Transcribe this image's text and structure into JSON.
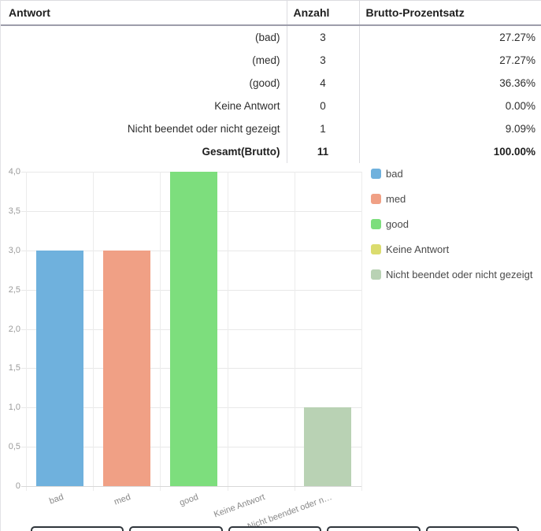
{
  "table": {
    "headers": [
      "Antwort",
      "Anzahl",
      "Brutto-Prozentsatz"
    ],
    "rows": [
      {
        "answer": "(bad)",
        "count": "3",
        "percent": "27.27%"
      },
      {
        "answer": "(med)",
        "count": "3",
        "percent": "27.27%"
      },
      {
        "answer": "(good)",
        "count": "4",
        "percent": "36.36%"
      },
      {
        "answer": "Keine Antwort",
        "count": "0",
        "percent": "0.00%"
      },
      {
        "answer": "Nicht beendet oder nicht gezeigt",
        "count": "1",
        "percent": "9.09%"
      },
      {
        "answer": "Gesamt(Brutto)",
        "count": "11",
        "percent": "100.00%"
      }
    ]
  },
  "chart_data": {
    "type": "bar",
    "categories": [
      "bad",
      "med",
      "good",
      "Keine Antwort",
      "Nicht beendet oder n…"
    ],
    "values": [
      3,
      3,
      4,
      0,
      1
    ],
    "bar_colors": [
      "#6fb1dd",
      "#f0a085",
      "#7dde7d",
      "#dbdc6e",
      "#b9d2b4"
    ],
    "legend": [
      {
        "label": "bad",
        "color": "#6fb1dd"
      },
      {
        "label": "med",
        "color": "#f0a085"
      },
      {
        "label": "good",
        "color": "#7dde7d"
      },
      {
        "label": "Keine Antwort",
        "color": "#dbdc6e"
      },
      {
        "label": "Nicht beendet oder nicht gezeigt",
        "color": "#b9d2b4"
      }
    ],
    "legend_position": "right",
    "grid": true,
    "ylim": [
      0,
      4
    ],
    "y_ticks": [
      {
        "label": "4,0",
        "value": 4
      },
      {
        "label": "3,5",
        "value": 3.5
      },
      {
        "label": "3,0",
        "value": 3
      },
      {
        "label": "2,5",
        "value": 2.5
      },
      {
        "label": "2,0",
        "value": 2
      },
      {
        "label": "1,5",
        "value": 1.5
      },
      {
        "label": "1,0",
        "value": 1
      },
      {
        "label": "0,5",
        "value": 0.5
      },
      {
        "label": "0",
        "value": 0
      }
    ],
    "title": "",
    "xlabel": "",
    "ylabel": ""
  },
  "footer": {
    "button_count": 5
  }
}
